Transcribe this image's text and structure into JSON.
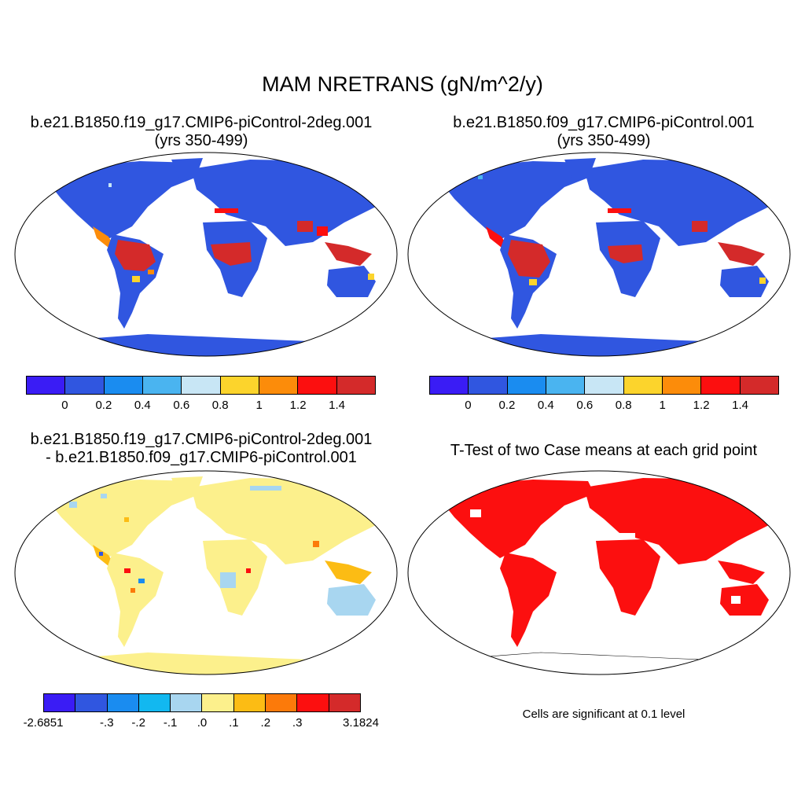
{
  "main_title": "MAM NRETRANS (gN/m^2/y)",
  "panels": {
    "p1": {
      "title_line1": "b.e21.B1850.f19_g17.CMIP6-piControl-2deg.001",
      "title_line2": "(yrs 350-499)"
    },
    "p2": {
      "title_line1": "b.e21.B1850.f09_g17.CMIP6-piControl.001",
      "title_line2": "(yrs 350-499)"
    },
    "p3": {
      "title_line1": "b.e21.B1850.f19_g17.CMIP6-piControl-2deg.001",
      "title_line2": "- b.e21.B1850.f09_g17.CMIP6-piControl.001"
    },
    "p4": {
      "title_line1": "T-Test of two Case means at each grid point"
    }
  },
  "colorbar_top": {
    "colors": [
      "#3a1cf5",
      "#3056e0",
      "#1a8cf0",
      "#4ab4f0",
      "#c8e6f5",
      "#fcd42c",
      "#fc8c0a",
      "#fc0f0f",
      "#d42a2a"
    ],
    "labels": [
      "0",
      "0.2",
      "0.4",
      "0.6",
      "0.8",
      "1",
      "1.2",
      "1.4"
    ]
  },
  "colorbar_diff": {
    "colors": [
      "#3a1cf5",
      "#3056e0",
      "#1a8cf0",
      "#12b8f0",
      "#a8d6f0",
      "#fcf08c",
      "#fcbc14",
      "#fc7a0a",
      "#fc0f0f",
      "#d42a2a"
    ],
    "labels": [
      "-2.6851",
      "-.3",
      "-.2",
      "-.1",
      ".0",
      ".1",
      ".2",
      ".3",
      "3.1824"
    ]
  },
  "significance_note": "Cells are significant at 0.1 level"
}
